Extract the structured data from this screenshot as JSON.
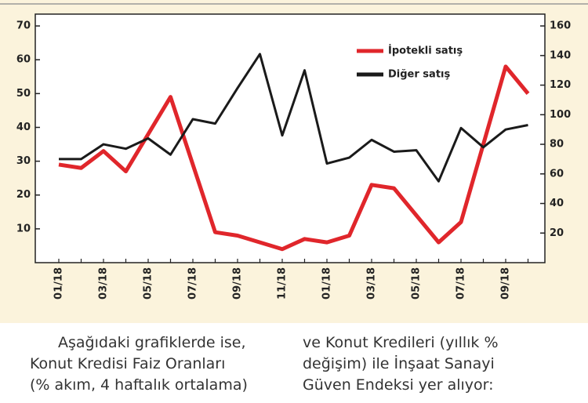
{
  "chart_data": {
    "type": "line",
    "categories": [
      "01/18",
      null,
      "03/18",
      null,
      "05/18",
      null,
      "07/18",
      null,
      "09/18",
      null,
      "11/18",
      null,
      "01/18",
      null,
      "03/18",
      null,
      "05/18",
      null,
      "07/18",
      null,
      "09/18",
      null
    ],
    "series": [
      {
        "name": "İpotekli satış",
        "color": "#e0262b",
        "axis": "y",
        "values": [
          29,
          28,
          33,
          27,
          38,
          49,
          29,
          9,
          8,
          6,
          4,
          7,
          6,
          8,
          23,
          22,
          14,
          6,
          12,
          35,
          58,
          50
        ]
      },
      {
        "name": "Diğer satış",
        "color": "#1a1a1a",
        "axis": "y2",
        "values": [
          70,
          70,
          80,
          77,
          84,
          73,
          97,
          94,
          118,
          141,
          86,
          130,
          67,
          71,
          83,
          75,
          76,
          55,
          91,
          78,
          90,
          93
        ]
      }
    ],
    "ylim": [
      0,
      73.5
    ],
    "yticks": [
      10,
      20,
      30,
      40,
      50,
      60,
      70
    ],
    "y2lim": [
      0,
      168
    ],
    "y2ticks": [
      20,
      40,
      60,
      80,
      100,
      120,
      140,
      160
    ],
    "legend": "top-right"
  },
  "caption": {
    "left": [
      "Aşağıdaki grafiklerde ise,",
      "Konut Kredisi Faiz Oranları",
      "(% akım, 4 haftalık ortalama)"
    ],
    "right": [
      "ve Konut Kredileri (yıllık %",
      "değişim) ile İnşaat Sanayi",
      "Güven Endeksi yer alıyor:"
    ]
  }
}
